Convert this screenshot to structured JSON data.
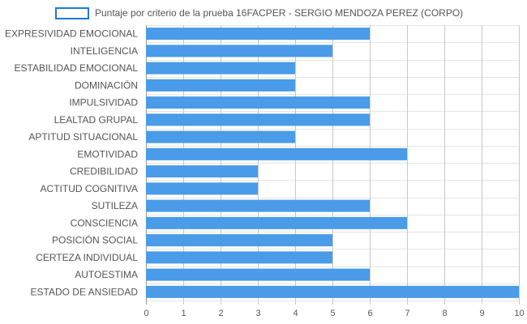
{
  "chart_data": {
    "type": "bar",
    "orientation": "horizontal",
    "series": [
      {
        "name": "Puntaje por criterio de la prueba 16FACPER - SERGIO MENDOZA PEREZ (CORPO)",
        "values": [
          6,
          5,
          4,
          4,
          6,
          6,
          4,
          7,
          3,
          3,
          6,
          7,
          5,
          5,
          6,
          10
        ]
      }
    ],
    "categories": [
      "EXPRESIVIDAD EMOCIONAL",
      "INTELIGENCIA",
      "ESTABILIDAD EMOCIONAL",
      "DOMINACIÓN",
      "IMPULSIVIDAD",
      "LEALTAD GRUPAL",
      "APTITUD SITUACIONAL",
      "EMOTIVIDAD",
      "CREDIBILIDAD",
      "ACTITUD COGNITIVA",
      "SUTILEZA",
      "CONSCIENCIA",
      "POSICIÓN SOCIAL",
      "CERTEZA INDIVIDUAL",
      "AUTOESTIMA",
      "ESTADO DE ANSIEDAD"
    ],
    "x_ticks": [
      "0",
      "1",
      "2",
      "3",
      "4",
      "5",
      "6",
      "7",
      "8",
      "9",
      "10"
    ],
    "xlim": [
      0,
      10
    ],
    "grid": true,
    "legend_position": "top",
    "bar_color": "#4a9be8",
    "bar_border_color": "#1e77e0"
  }
}
